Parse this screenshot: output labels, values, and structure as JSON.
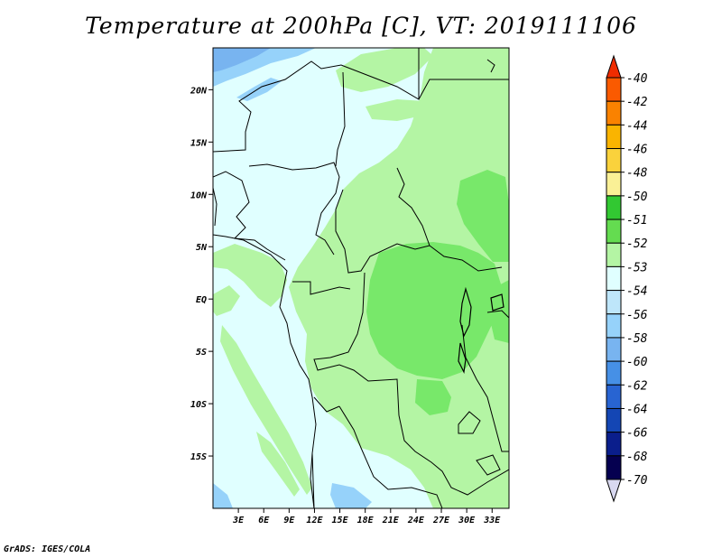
{
  "title": "Temperature at 200hPa [C], VT: 2019111106",
  "footer": "GrADS: IGES/COLA",
  "map": {
    "lon_range": [
      0,
      35
    ],
    "lat_range": [
      -20,
      24
    ],
    "x_ticks": [
      {
        "lon": 3,
        "label": "3E"
      },
      {
        "lon": 6,
        "label": "6E"
      },
      {
        "lon": 9,
        "label": "9E"
      },
      {
        "lon": 12,
        "label": "12E"
      },
      {
        "lon": 15,
        "label": "15E"
      },
      {
        "lon": 18,
        "label": "18E"
      },
      {
        "lon": 21,
        "label": "21E"
      },
      {
        "lon": 24,
        "label": "24E"
      },
      {
        "lon": 27,
        "label": "27E"
      },
      {
        "lon": 30,
        "label": "30E"
      },
      {
        "lon": 33,
        "label": "33E"
      }
    ],
    "y_ticks": [
      {
        "lat": 20,
        "label": "20N"
      },
      {
        "lat": 15,
        "label": "15N"
      },
      {
        "lat": 10,
        "label": "10N"
      },
      {
        "lat": 5,
        "label": "5N"
      },
      {
        "lat": 0,
        "label": "EQ"
      },
      {
        "lat": -5,
        "label": "5S"
      },
      {
        "lat": -10,
        "label": "10S"
      },
      {
        "lat": -15,
        "label": "15S"
      }
    ],
    "colors": {
      "bg": "#e0ffff",
      "light_green": "#b4f5a4",
      "mid_green": "#78e86a",
      "light_blue": "#96d2fa",
      "mid_blue": "#78b4f0",
      "border": "#000000"
    }
  },
  "legend": {
    "labels": [
      "-40",
      "-42",
      "-44",
      "-46",
      "-48",
      "-50",
      "-51",
      "-52",
      "-53",
      "-54",
      "-56",
      "-58",
      "-60",
      "-62",
      "-64",
      "-66",
      "-68",
      "-70"
    ],
    "colors": [
      "#f02c00",
      "#fa5a00",
      "#fa8200",
      "#fab400",
      "#fad23c",
      "#faf096",
      "#32c832",
      "#64dc50",
      "#b4f5a4",
      "#e0ffff",
      "#bee6fa",
      "#96d2fa",
      "#78b4f0",
      "#4690e6",
      "#2864d2",
      "#1446b4",
      "#0a1e8c",
      "#050050",
      "#d8d8f0"
    ]
  }
}
